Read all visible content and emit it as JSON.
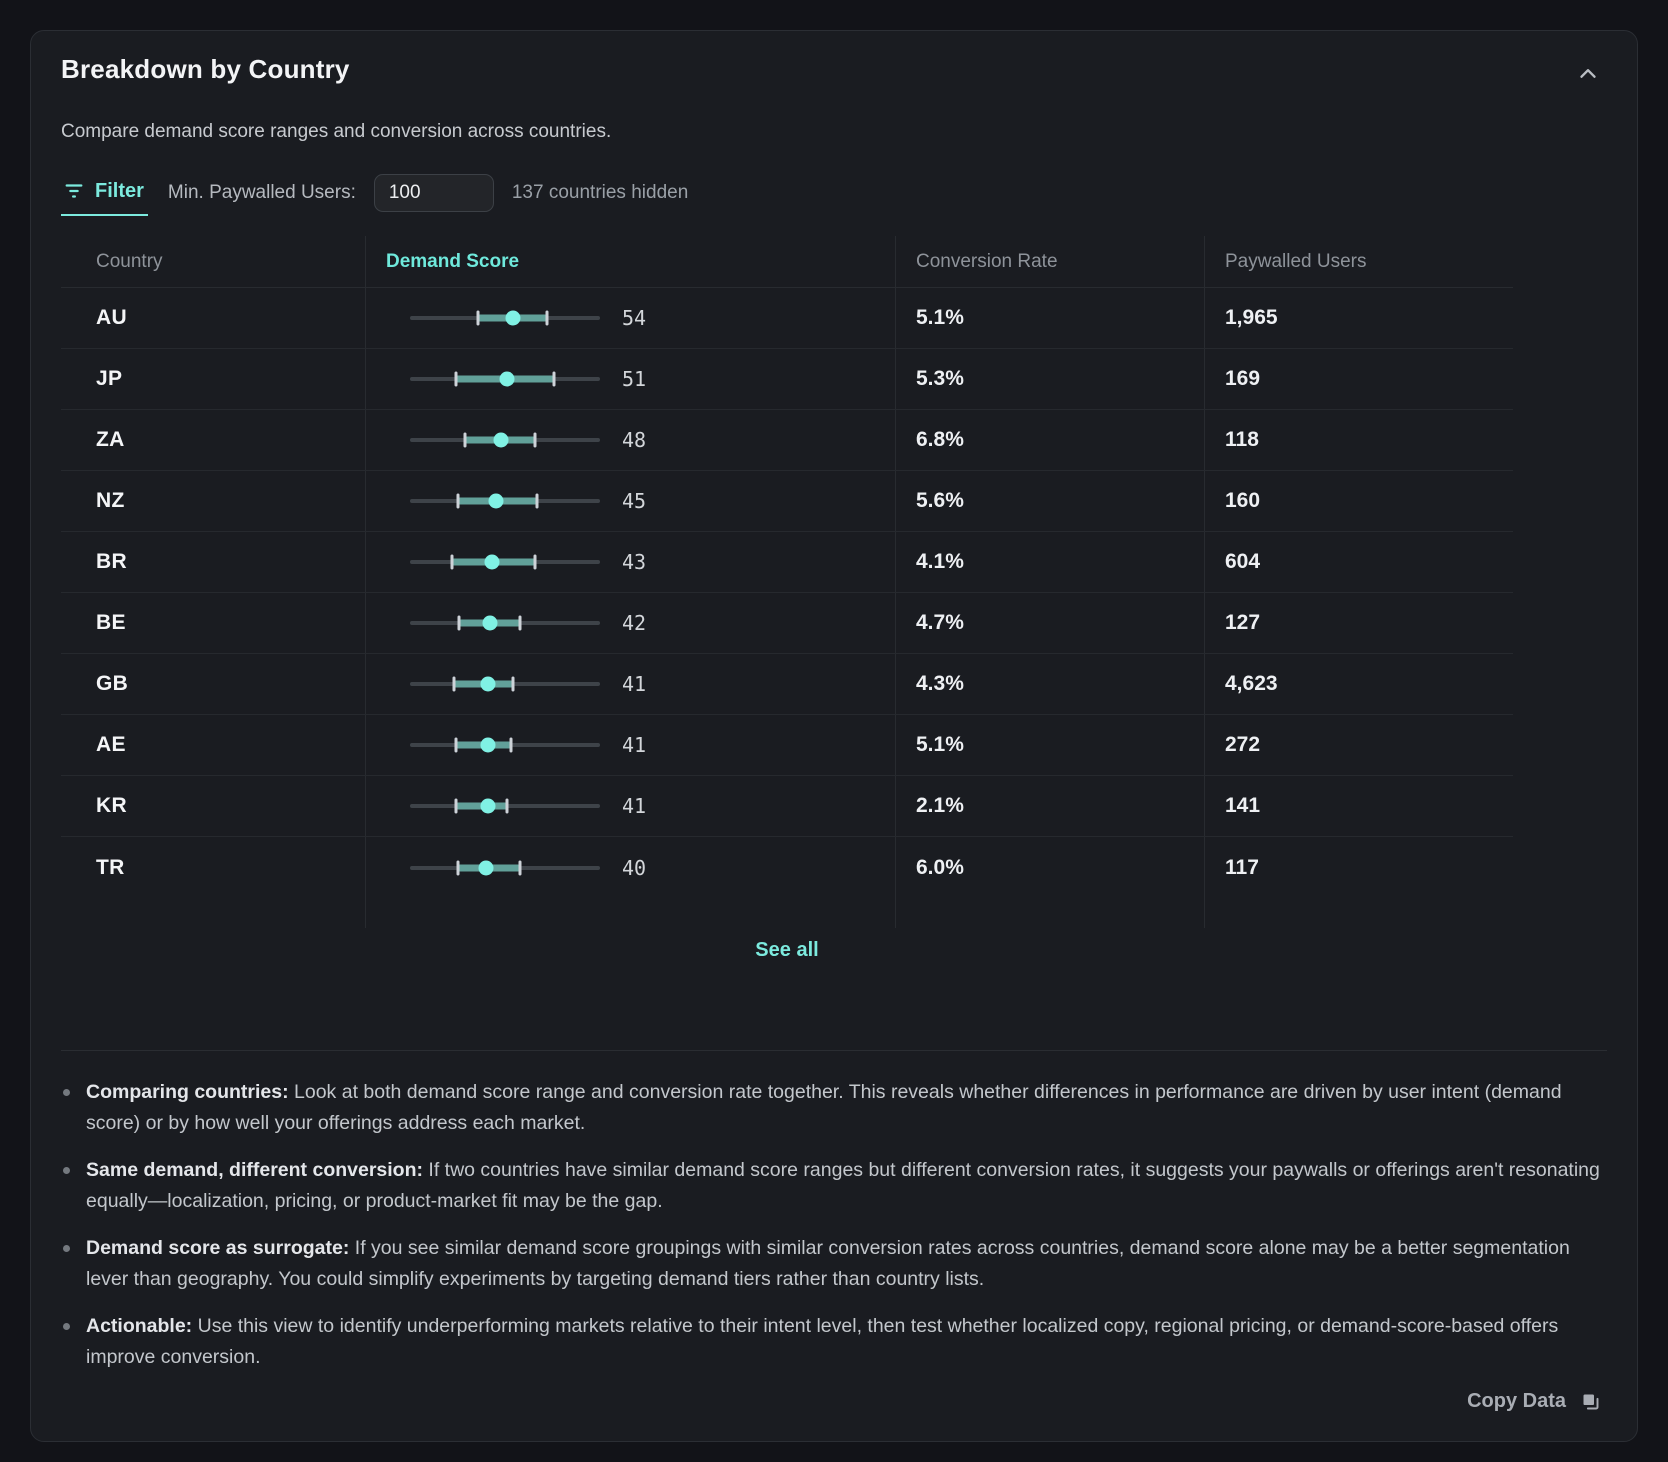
{
  "panel": {
    "title": "Breakdown by Country",
    "subtitle": "Compare demand score ranges and conversion across countries."
  },
  "filter": {
    "label": "Filter",
    "min_users_label": "Min. Paywalled Users:",
    "min_users_value": "100",
    "hidden_note": "137 countries hidden"
  },
  "table": {
    "columns": [
      "Country",
      "Demand Score",
      "Conversion Rate",
      "Paywalled Users"
    ],
    "sorted_column": "Demand Score",
    "rows": [
      {
        "country": "AU",
        "score": 54,
        "range_min": 36,
        "range_max": 72,
        "conversion": "5.1%",
        "users": "1,965"
      },
      {
        "country": "JP",
        "score": 51,
        "range_min": 24,
        "range_max": 76,
        "conversion": "5.3%",
        "users": "169"
      },
      {
        "country": "ZA",
        "score": 48,
        "range_min": 29,
        "range_max": 66,
        "conversion": "6.8%",
        "users": "118"
      },
      {
        "country": "NZ",
        "score": 45,
        "range_min": 25,
        "range_max": 67,
        "conversion": "5.6%",
        "users": "160"
      },
      {
        "country": "BR",
        "score": 43,
        "range_min": 22,
        "range_max": 66,
        "conversion": "4.1%",
        "users": "604"
      },
      {
        "country": "BE",
        "score": 42,
        "range_min": 26,
        "range_max": 58,
        "conversion": "4.7%",
        "users": "127"
      },
      {
        "country": "GB",
        "score": 41,
        "range_min": 23,
        "range_max": 54,
        "conversion": "4.3%",
        "users": "4,623"
      },
      {
        "country": "AE",
        "score": 41,
        "range_min": 24,
        "range_max": 53,
        "conversion": "5.1%",
        "users": "272"
      },
      {
        "country": "KR",
        "score": 41,
        "range_min": 24,
        "range_max": 51,
        "conversion": "2.1%",
        "users": "141"
      },
      {
        "country": "TR",
        "score": 40,
        "range_min": 25,
        "range_max": 58,
        "conversion": "6.0%",
        "users": "117"
      }
    ],
    "see_all_label": "See all"
  },
  "notes": [
    {
      "lead": "Comparing countries:",
      "text": " Look at both demand score range and conversion rate together. This reveals whether differences in performance are driven by user intent (demand score) or by how well your offerings address each market."
    },
    {
      "lead": "Same demand, different conversion:",
      "text": " If two countries have similar demand score ranges but different conversion rates, it suggests your paywalls or offerings aren't resonating equally—localization, pricing, or product-market fit may be the gap."
    },
    {
      "lead": "Demand score as surrogate:",
      "text": " If you see similar demand score groupings with similar conversion rates across countries, demand score alone may be a better segmentation lever than geography. You could simplify experiments by targeting demand tiers rather than country lists."
    },
    {
      "lead": "Actionable:",
      "text": " Use this view to identify underperforming markets relative to their intent level, then test whether localized copy, regional pricing, or demand-score-based offers improve conversion."
    }
  ],
  "footer": {
    "copy_label": "Copy Data"
  },
  "colors": {
    "accent": "#7ceade",
    "range_bar": "#61a099",
    "dot": "#80f1e4",
    "track": "#3e4349",
    "panel_bg": "#1a1c21",
    "page_bg": "#121318"
  }
}
